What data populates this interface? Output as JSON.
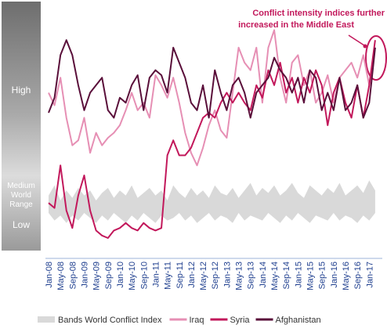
{
  "chart_data": {
    "type": "line",
    "annotation": [
      "Conflict intensity indices further",
      "increased in the Middle East"
    ],
    "band_labels": {
      "high": "High",
      "medium": [
        "Medium",
        "World",
        "Range"
      ],
      "low": "Low"
    },
    "categories": [
      "Jan-08",
      null,
      "May-08",
      null,
      "Sep-08",
      null,
      "Jan-09",
      null,
      "May-09",
      null,
      "Sep-09",
      null,
      "Jan-10",
      null,
      "May-10",
      null,
      "Sep-10",
      null,
      "Jan-11",
      null,
      "May-11",
      null,
      "Sep-11",
      null,
      "Jan-12",
      null,
      "May-12",
      null,
      "Sep-12",
      null,
      "Jan-13",
      null,
      "May-13",
      null,
      "Sep-13",
      null,
      "Jan-14",
      null,
      "May-14",
      null,
      "Sep-14",
      null,
      "Jan-15",
      null,
      "May-15",
      null,
      "Sep-15",
      null,
      "Jan-16",
      null,
      "May-16",
      null,
      "Sep-16",
      null,
      "Jan-17",
      null
    ],
    "ylim": [
      0,
      100
    ],
    "band": {
      "name": "Bands World Conflict Index",
      "color": "#d9d9d9",
      "upper": [
        22,
        26,
        20,
        24,
        21,
        25,
        22,
        24,
        20,
        23,
        25,
        21,
        24,
        22,
        26,
        21,
        23,
        25,
        22,
        24,
        20,
        26,
        23,
        21,
        25,
        22,
        24,
        21,
        26,
        23,
        22,
        25,
        21,
        24,
        27,
        22,
        25,
        23,
        26,
        22,
        24,
        27,
        23,
        21,
        26,
        24,
        22,
        25,
        23,
        27,
        22,
        24,
        26,
        23,
        28,
        24
      ],
      "lower": [
        15,
        12,
        14,
        11,
        14,
        12,
        15,
        13,
        11,
        14,
        12,
        15,
        13,
        11,
        14,
        12,
        15,
        13,
        11,
        14,
        12,
        13,
        15,
        12,
        14,
        11,
        13,
        15,
        12,
        14,
        13,
        11,
        15,
        12,
        14,
        13,
        12,
        15,
        13,
        11,
        14,
        12,
        15,
        13,
        11,
        14,
        13,
        12,
        15,
        12,
        14,
        13,
        11,
        14,
        12,
        15
      ]
    },
    "series": [
      {
        "name": "Iraq",
        "color": "#e68fb4",
        "values": [
          63,
          58,
          69,
          53,
          42,
          44,
          53,
          39,
          47,
          42,
          45,
          47,
          50,
          56,
          63,
          56,
          59,
          53,
          70,
          66,
          61,
          69,
          59,
          47,
          39,
          34,
          41,
          50,
          56,
          48,
          45,
          63,
          81,
          75,
          72,
          81,
          59,
          81,
          88,
          69,
          59,
          75,
          78,
          66,
          72,
          59,
          63,
          70,
          59,
          69,
          72,
          75,
          69,
          78,
          66,
          81
        ]
      },
      {
        "name": "Syria",
        "color": "#c2185b",
        "values": [
          19,
          17,
          34,
          16,
          9,
          22,
          30,
          16,
          8,
          6,
          5,
          8,
          9,
          11,
          9,
          8,
          11,
          9,
          8,
          9,
          38,
          44,
          38,
          38,
          41,
          47,
          53,
          55,
          53,
          59,
          63,
          59,
          63,
          59,
          56,
          66,
          61,
          72,
          66,
          75,
          63,
          69,
          59,
          69,
          63,
          72,
          66,
          50,
          63,
          69,
          59,
          53,
          66,
          53,
          66,
          84
        ]
      },
      {
        "name": "Afghanistan",
        "color": "#5a0f3a",
        "values": [
          55,
          61,
          78,
          84,
          78,
          66,
          56,
          63,
          66,
          69,
          56,
          53,
          61,
          59,
          66,
          70,
          56,
          69,
          72,
          70,
          63,
          81,
          75,
          69,
          59,
          56,
          66,
          53,
          72,
          63,
          56,
          66,
          69,
          63,
          53,
          63,
          66,
          69,
          77,
          72,
          69,
          63,
          69,
          59,
          72,
          69,
          56,
          63,
          56,
          69,
          56,
          59,
          66,
          53,
          59,
          81
        ]
      }
    ]
  }
}
